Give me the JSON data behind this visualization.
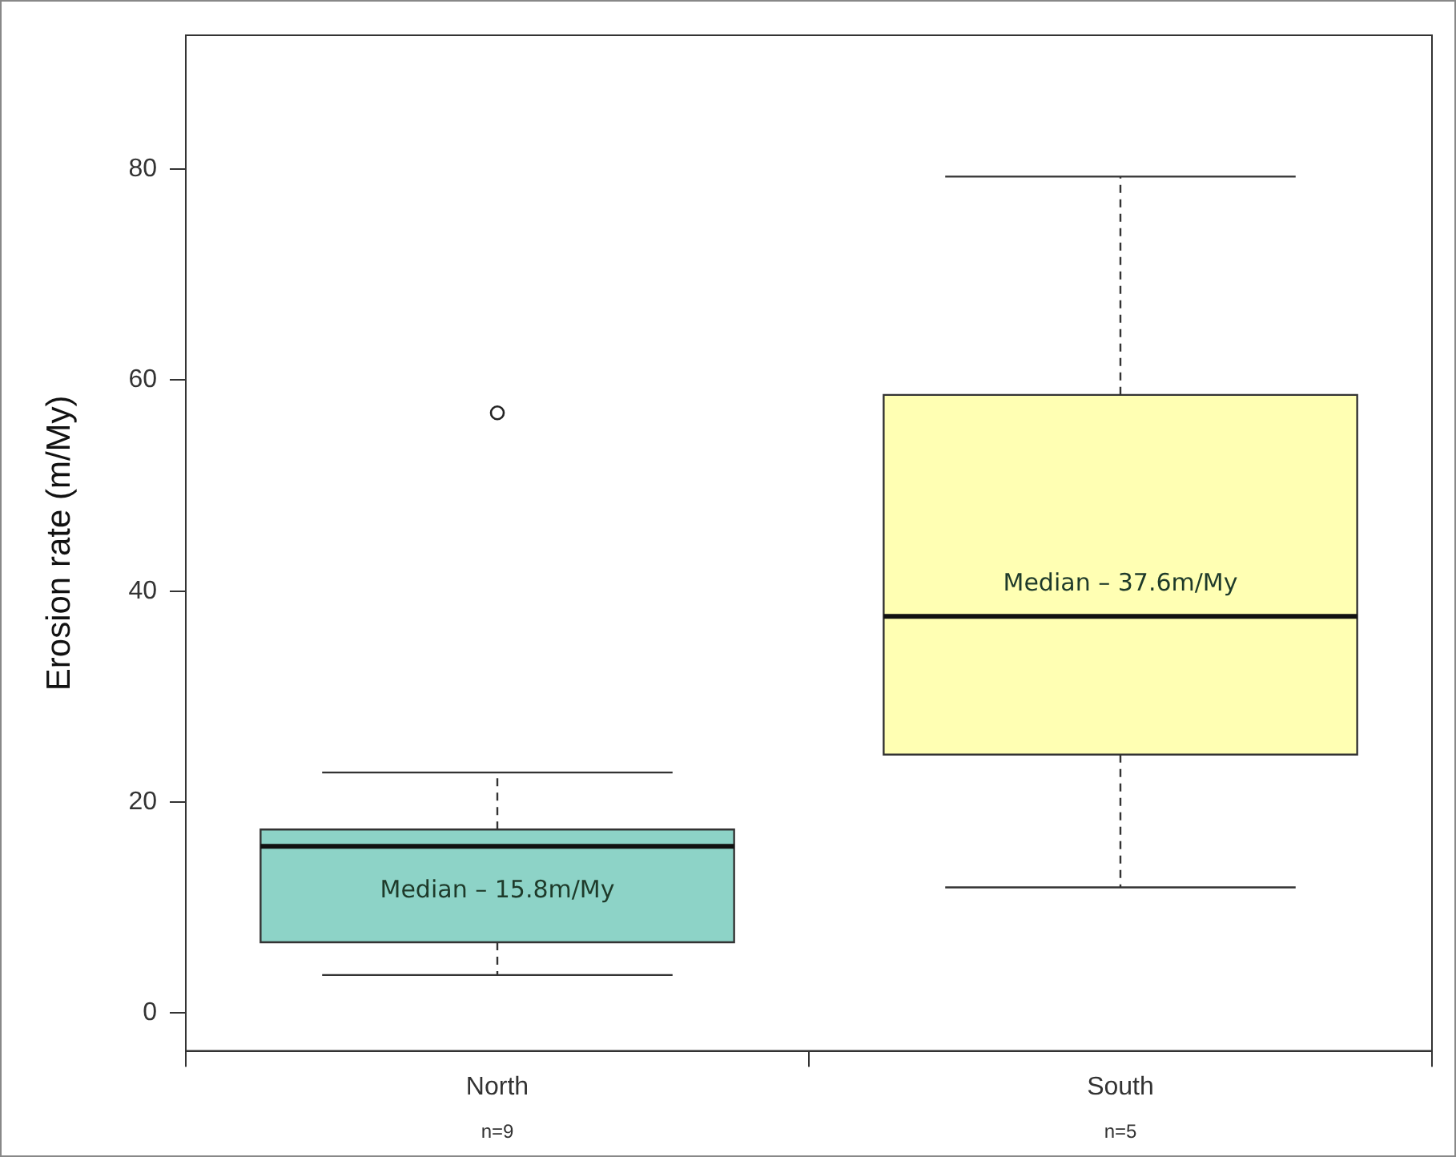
{
  "chart_data": {
    "type": "box",
    "categories": [
      "North",
      "South"
    ],
    "boxes": [
      {
        "low": 3.6,
        "q1": 6.7,
        "median": 15.8,
        "q3": 17.4,
        "high": 22.8,
        "outliers": [
          56.9
        ]
      },
      {
        "low": 11.9,
        "q1": 24.5,
        "median": 37.6,
        "q3": 58.6,
        "high": 79.3
      }
    ],
    "colors": [
      "#8dd3c7",
      "#ffffb3"
    ],
    "ylabel": "Erosion rate (m/My)",
    "ylim": [
      -3.6,
      92.7
    ],
    "yticks": [
      0,
      20,
      40,
      60,
      80
    ],
    "annotations": [
      "Median – 15.8m/My",
      "Median – 37.6m/My",
      "n=9",
      "n=5"
    ]
  }
}
